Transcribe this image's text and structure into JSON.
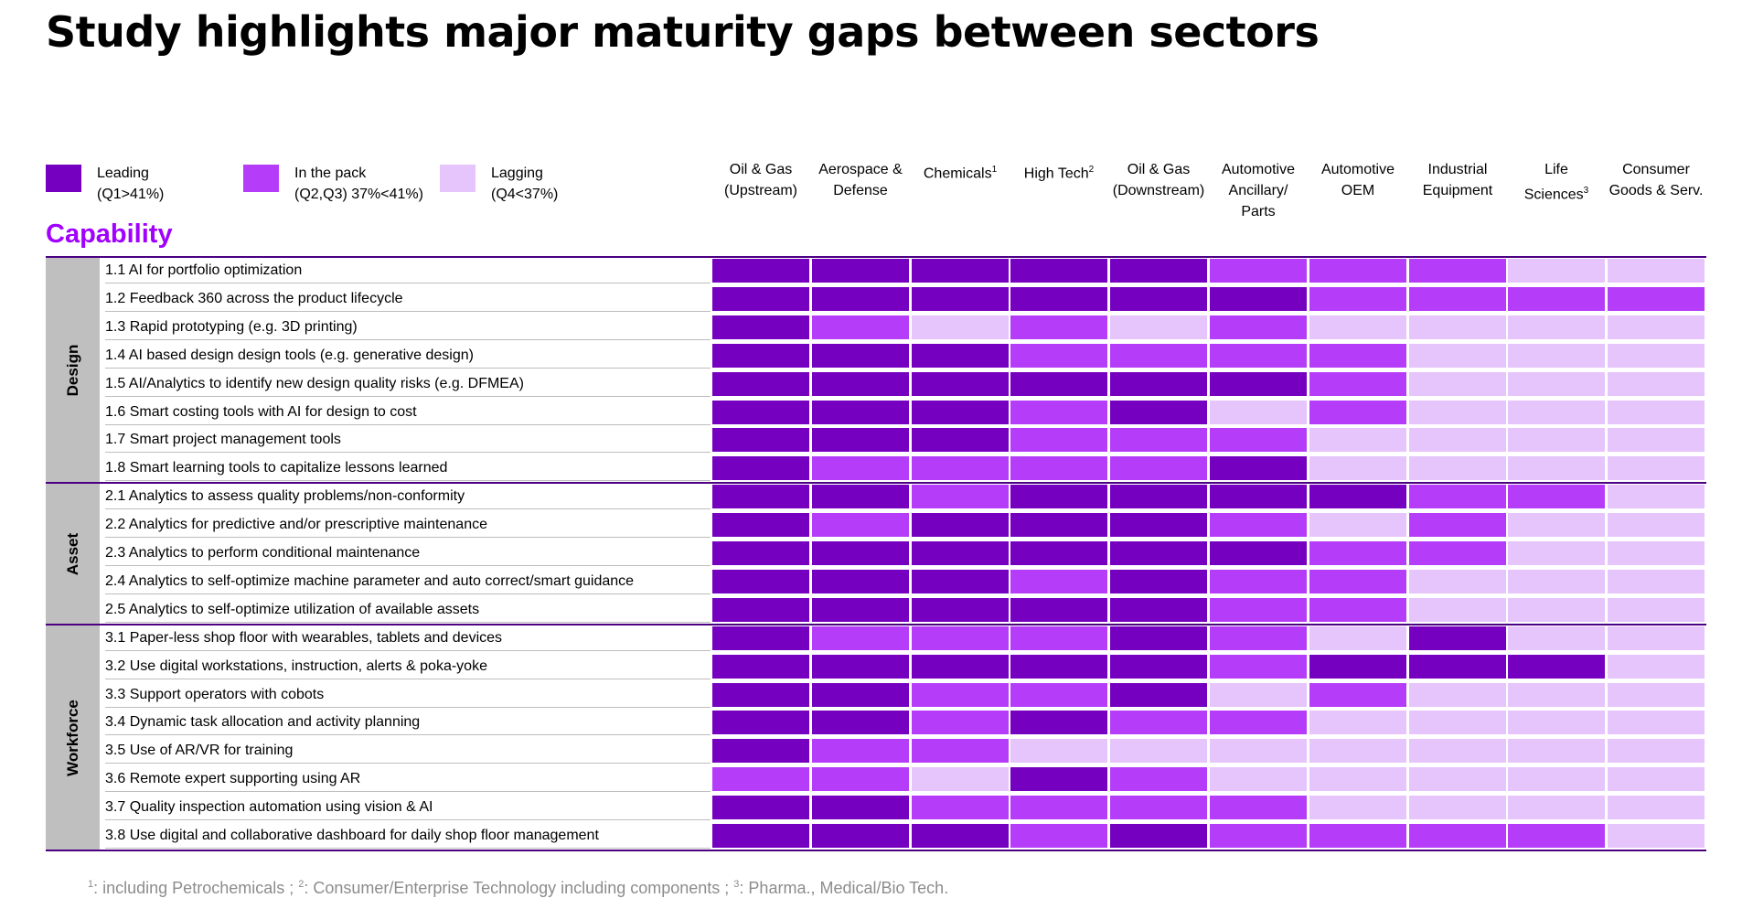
{
  "title": "Study highlights major maturity gaps between sectors",
  "legend": [
    {
      "label": "Leading",
      "sub": "(Q1>41%)",
      "color": "#7500c0"
    },
    {
      "label": "In the pack",
      "sub": "(Q2,Q3) 37%<41%)",
      "color": "#b53df9"
    },
    {
      "label": "Lagging",
      "sub": "(Q4<37%)",
      "color": "#e6c4fc"
    }
  ],
  "sectors": [
    {
      "lines": [
        "Oil & Gas",
        "(Upstream)"
      ],
      "sup": ""
    },
    {
      "lines": [
        "Aerospace &",
        "Defense"
      ],
      "sup": ""
    },
    {
      "lines": [
        "Chemicals"
      ],
      "sup": "1"
    },
    {
      "lines": [
        "High Tech"
      ],
      "sup": "2"
    },
    {
      "lines": [
        "Oil & Gas",
        "(Downstream)"
      ],
      "sup": ""
    },
    {
      "lines": [
        "Automotive",
        "Ancillary/",
        "Parts"
      ],
      "sup": ""
    },
    {
      "lines": [
        "Automotive",
        "OEM"
      ],
      "sup": ""
    },
    {
      "lines": [
        "Industrial",
        "Equipment"
      ],
      "sup": ""
    },
    {
      "lines": [
        "Life",
        "Sciences"
      ],
      "sup": "3"
    },
    {
      "lines": [
        "Consumer",
        "Goods & Serv."
      ],
      "sup": ""
    }
  ],
  "capability_heading": "Capability",
  "groups": [
    {
      "name": "Design",
      "rows": [
        "1.1 AI for portfolio optimization",
        "1.2 Feedback 360 across the product lifecycle",
        "1.3 Rapid prototyping (e.g. 3D printing)",
        "1.4 AI based design design tools (e.g. generative design)",
        "1.5 AI/Analytics to identify new design quality risks (e.g. DFMEA)",
        "1.6 Smart costing tools with AI for design to cost",
        "1.7 Smart project management tools",
        "1.8 Smart learning tools to capitalize lessons learned"
      ]
    },
    {
      "name": "Asset",
      "rows": [
        "2.1 Analytics to assess quality problems/non-conformity",
        "2.2 Analytics for predictive and/or prescriptive maintenance",
        "2.3 Analytics to perform conditional maintenance",
        "2.4 Analytics to self-optimize machine parameter and auto correct/smart guidance",
        "2.5 Analytics to self-optimize utilization of available assets"
      ]
    },
    {
      "name": "Workforce",
      "rows": [
        "3.1 Paper-less shop floor with wearables, tablets and devices",
        "3.2 Use digital workstations, instruction, alerts & poka-yoke",
        "3.3 Support operators with cobots",
        "3.4 Dynamic task allocation and activity planning",
        "3.5 Use of AR/VR for training",
        "3.6 Remote expert supporting using AR",
        "3.7 Quality inspection automation using vision & AI",
        "3.8 Use digital and collaborative dashboard for daily shop floor management"
      ]
    }
  ],
  "chart_data": {
    "type": "heatmap",
    "title": "Study highlights major maturity gaps between sectors",
    "levels": {
      "L": "Leading",
      "P": "In the pack",
      "G": "Lagging"
    },
    "columns": [
      "Oil & Gas (Upstream)",
      "Aerospace & Defense",
      "Chemicals",
      "High Tech",
      "Oil & Gas (Downstream)",
      "Automotive Ancillary/ Parts",
      "Automotive OEM",
      "Industrial Equipment",
      "Life Sciences",
      "Consumer Goods & Serv."
    ],
    "rows": [
      "1.1 AI for portfolio optimization",
      "1.2 Feedback 360 across the product lifecycle",
      "1.3 Rapid prototyping (e.g. 3D printing)",
      "1.4 AI based design design tools (e.g. generative design)",
      "1.5 AI/Analytics to identify new design quality risks (e.g. DFMEA)",
      "1.6 Smart costing tools with AI for design to cost",
      "1.7 Smart project management tools",
      "1.8 Smart learning tools to capitalize lessons learned",
      "2.1 Analytics to assess quality problems/non-conformity",
      "2.2 Analytics for predictive and/or prescriptive maintenance",
      "2.3 Analytics to perform conditional maintenance",
      "2.4 Analytics to self-optimize machine parameter and auto correct/smart guidance",
      "2.5 Analytics to self-optimize utilization of available assets",
      "3.1 Paper-less shop floor with wearables, tablets and devices",
      "3.2 Use digital workstations, instruction, alerts & poka-yoke",
      "3.3 Support operators with cobots",
      "3.4 Dynamic task allocation and activity planning",
      "3.5 Use of AR/VR for training",
      "3.6 Remote expert supporting using AR",
      "3.7 Quality inspection automation using vision & AI",
      "3.8 Use digital and collaborative dashboard for daily shop floor management"
    ],
    "values": [
      [
        "L",
        "L",
        "L",
        "L",
        "L",
        "P",
        "P",
        "P",
        "G",
        "G"
      ],
      [
        "L",
        "L",
        "L",
        "L",
        "L",
        "L",
        "P",
        "P",
        "P",
        "P"
      ],
      [
        "L",
        "P",
        "G",
        "P",
        "G",
        "P",
        "G",
        "G",
        "G",
        "G"
      ],
      [
        "L",
        "L",
        "L",
        "P",
        "P",
        "P",
        "P",
        "G",
        "G",
        "G"
      ],
      [
        "L",
        "L",
        "L",
        "L",
        "L",
        "L",
        "P",
        "G",
        "G",
        "G"
      ],
      [
        "L",
        "L",
        "L",
        "P",
        "L",
        "G",
        "P",
        "G",
        "G",
        "G"
      ],
      [
        "L",
        "L",
        "L",
        "P",
        "P",
        "P",
        "G",
        "G",
        "G",
        "G"
      ],
      [
        "L",
        "P",
        "P",
        "P",
        "P",
        "L",
        "G",
        "G",
        "G",
        "G"
      ],
      [
        "L",
        "L",
        "P",
        "L",
        "L",
        "L",
        "L",
        "P",
        "P",
        "G"
      ],
      [
        "L",
        "P",
        "L",
        "L",
        "L",
        "P",
        "G",
        "P",
        "G",
        "G"
      ],
      [
        "L",
        "L",
        "L",
        "L",
        "L",
        "L",
        "P",
        "P",
        "G",
        "G"
      ],
      [
        "L",
        "L",
        "L",
        "P",
        "L",
        "P",
        "P",
        "G",
        "G",
        "G"
      ],
      [
        "L",
        "L",
        "L",
        "L",
        "L",
        "P",
        "P",
        "G",
        "G",
        "G"
      ],
      [
        "L",
        "P",
        "P",
        "P",
        "L",
        "P",
        "G",
        "L",
        "G",
        "G"
      ],
      [
        "L",
        "L",
        "L",
        "L",
        "L",
        "P",
        "L",
        "L",
        "L",
        "G"
      ],
      [
        "L",
        "L",
        "P",
        "P",
        "L",
        "G",
        "P",
        "G",
        "G",
        "G"
      ],
      [
        "L",
        "L",
        "P",
        "L",
        "P",
        "P",
        "G",
        "G",
        "G",
        "G"
      ],
      [
        "L",
        "P",
        "P",
        "G",
        "G",
        "G",
        "G",
        "G",
        "G",
        "G"
      ],
      [
        "P",
        "P",
        "G",
        "L",
        "P",
        "G",
        "G",
        "G",
        "G",
        "G"
      ],
      [
        "L",
        "L",
        "P",
        "P",
        "P",
        "P",
        "G",
        "G",
        "G",
        "G"
      ],
      [
        "L",
        "L",
        "L",
        "P",
        "L",
        "P",
        "P",
        "P",
        "P",
        "G"
      ]
    ]
  },
  "footnote": {
    "s1": "1",
    "t1": ": including Petrochemicals ; ",
    "s2": "2",
    "t2": ": Consumer/Enterprise Technology including components ; ",
    "s3": "3",
    "t3": ": Pharma., Medical/Bio Tech."
  }
}
